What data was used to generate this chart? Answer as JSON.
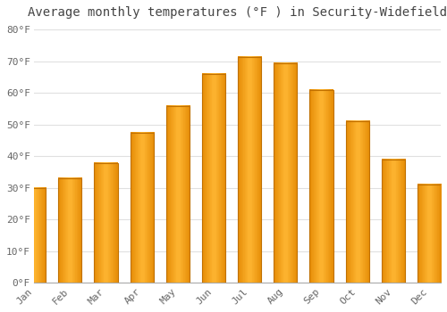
{
  "title": "Average monthly temperatures (°F ) in Security-Widefield",
  "months": [
    "Jan",
    "Feb",
    "Mar",
    "Apr",
    "May",
    "Jun",
    "Jul",
    "Aug",
    "Sep",
    "Oct",
    "Nov",
    "Dec"
  ],
  "values": [
    30,
    33,
    38,
    47.5,
    56,
    66,
    71.5,
    69.5,
    61,
    51,
    39,
    31
  ],
  "bar_color_light": "#FFB733",
  "bar_color_dark": "#E8900A",
  "bar_edge_color": "#C07000",
  "background_color": "#FFFFFF",
  "ylim": [
    0,
    82
  ],
  "yticks": [
    0,
    10,
    20,
    30,
    40,
    50,
    60,
    70,
    80
  ],
  "ytick_labels": [
    "0°F",
    "10°F",
    "20°F",
    "30°F",
    "40°F",
    "50°F",
    "60°F",
    "70°F",
    "80°F"
  ],
  "grid_color": "#E0E0E0",
  "title_fontsize": 10,
  "tick_fontsize": 8,
  "font_family": "monospace",
  "tick_color": "#666666",
  "title_color": "#444444"
}
